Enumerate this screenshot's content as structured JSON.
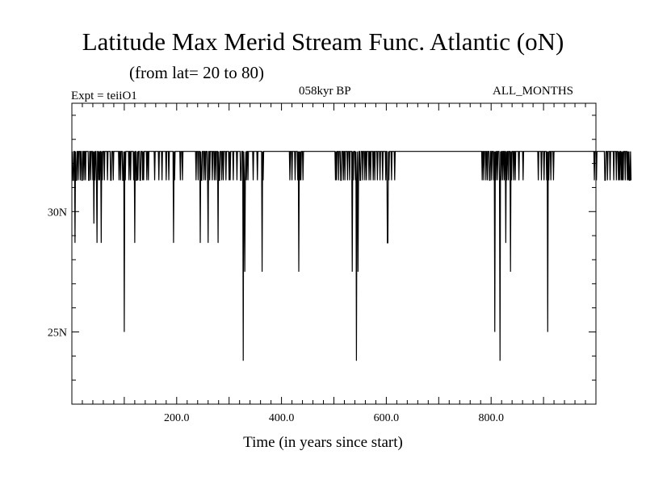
{
  "header": {
    "title": "Latitude Max Merid Stream Func. Atlantic (oN)",
    "subtitle": "(from lat= 20 to 80)",
    "experiment": "Expt = teiiO1",
    "period": "058kyr BP",
    "months": "ALL_MONTHS"
  },
  "chart_data": {
    "type": "line",
    "title": "Latitude Max Merid Stream Func. Atlantic (oN)",
    "subtitle": "(from lat= 20 to 80)",
    "xlabel": "Time (in years since start)",
    "ylabel": "",
    "xlim": [
      0,
      1000
    ],
    "ylim": [
      22,
      34.5
    ],
    "x_ticks": [
      200,
      400,
      600,
      800
    ],
    "x_tick_labels": [
      "200.0",
      "400.0",
      "600.0",
      "800.0"
    ],
    "y_ticks": [
      25,
      30
    ],
    "y_tick_labels": [
      "25N",
      "30N"
    ],
    "grid": false,
    "legend": "none",
    "series": [
      {
        "x_start": 1,
        "x_step": 1,
        "base_level": 32.5,
        "values": [
          32.5,
          31.3,
          31.3,
          32.5,
          32.5,
          28.7,
          32.5,
          31.3,
          31.3,
          32.5,
          32.5,
          31.3,
          32.5,
          32.5,
          32.5,
          31.3,
          32.5,
          32.5,
          31.3,
          31.3,
          32.5,
          32.5,
          31.3,
          32.5,
          32.5,
          31.3,
          32.5,
          32.5,
          32.5,
          32.5,
          32.5,
          31.3,
          31.3,
          32.5,
          32.5,
          31.3,
          32.5,
          32.5,
          32.5,
          31.3,
          32.5,
          29.5,
          32.5,
          31.3,
          32.5,
          32.5,
          31.3,
          28.7,
          32.5,
          32.5,
          31.3,
          32.5,
          31.3,
          32.5,
          32.5,
          28.7,
          32.5,
          31.3,
          32.5,
          32.5,
          32.5,
          31.3,
          32.5,
          32.5,
          32.5,
          32.5,
          32.5,
          31.3,
          32.5,
          32.5,
          32.5,
          32.5,
          32.5,
          31.3,
          31.3,
          32.5,
          32.5,
          32.5,
          31.3,
          32.5,
          32.5,
          32.5,
          32.5,
          32.5,
          32.5,
          32.5,
          32.5,
          32.5,
          32.5,
          31.3,
          32.5,
          32.5,
          31.3,
          32.5,
          32.5,
          32.5,
          31.3,
          31.3,
          32.5,
          25.0,
          32.5,
          31.3,
          32.5,
          32.5,
          32.5,
          32.5,
          32.5,
          32.5,
          31.3,
          32.5,
          32.5,
          31.3,
          32.5,
          32.5,
          32.5,
          32.5,
          32.5,
          31.3,
          32.5,
          28.7,
          32.5,
          32.5,
          31.3,
          31.3,
          32.5,
          31.3,
          32.5,
          32.5,
          32.5,
          31.3,
          31.3,
          32.5,
          32.5,
          32.5,
          31.3,
          32.5,
          31.3,
          32.5,
          32.5,
          32.5,
          32.5,
          32.5,
          31.3,
          32.5,
          32.5,
          31.3,
          32.5,
          32.5,
          32.5,
          32.5,
          32.5,
          32.5,
          32.5,
          32.5,
          32.5,
          32.5,
          32.5,
          31.3,
          32.5,
          32.5,
          32.5,
          32.5,
          32.5,
          32.5,
          32.5,
          31.3,
          32.5,
          32.5,
          32.5,
          32.5,
          32.5,
          31.3,
          32.5,
          32.5,
          32.5,
          32.5,
          32.5,
          32.5,
          32.5,
          31.3,
          32.5,
          32.5,
          32.5,
          32.5,
          31.3,
          32.5,
          32.5,
          32.5,
          32.5,
          32.5,
          32.5,
          32.5,
          32.5,
          28.7,
          32.5,
          31.3,
          32.5,
          32.5,
          32.5,
          32.5,
          32.5,
          32.5,
          32.5,
          32.5,
          32.5,
          32.5,
          31.3,
          32.5,
          32.5,
          32.5,
          31.3,
          32.5,
          32.5,
          32.5,
          32.5,
          32.5,
          32.5,
          32.5,
          32.5,
          32.5,
          32.5,
          32.5,
          32.5,
          32.5,
          32.5,
          32.5,
          32.5,
          32.5,
          32.5,
          32.5,
          32.5,
          32.5,
          32.5,
          32.5,
          32.5,
          32.5,
          31.3,
          32.5,
          32.5,
          32.5,
          31.3,
          32.5,
          32.5,
          32.5,
          28.7,
          32.5,
          31.3,
          31.3,
          32.5,
          32.5,
          32.5,
          31.3,
          32.5,
          32.5,
          31.3,
          32.5,
          32.5,
          32.5,
          31.3,
          28.7,
          32.5,
          32.5,
          31.3,
          32.5,
          32.5,
          32.5,
          32.5,
          31.3,
          32.5,
          32.5,
          32.5,
          31.3,
          32.5,
          32.5,
          31.3,
          32.5,
          32.5,
          32.5,
          28.7,
          32.5,
          31.3,
          31.3,
          32.5,
          32.5,
          32.5,
          31.3,
          32.5,
          32.5,
          31.3,
          32.5,
          32.5,
          32.5,
          32.5,
          31.3,
          32.5,
          32.5,
          32.5,
          32.5,
          32.5,
          31.3,
          32.5,
          31.3,
          32.5,
          32.5,
          32.5,
          32.5,
          32.5,
          31.3,
          32.5,
          32.5,
          32.5,
          32.5,
          32.5,
          32.5,
          31.3,
          32.5,
          32.5,
          32.5,
          32.5,
          32.5,
          32.5,
          31.3,
          31.3,
          32.5,
          32.5,
          32.5,
          23.8,
          32.5,
          31.3,
          27.5,
          31.3,
          32.5,
          31.3,
          32.5,
          32.5,
          31.3,
          32.5,
          32.5,
          32.5,
          32.5,
          32.5,
          32.5,
          32.5,
          32.5,
          32.5,
          31.3,
          32.5,
          32.5,
          32.5,
          32.5,
          32.5,
          32.5,
          32.5,
          31.3,
          32.5,
          32.5,
          32.5,
          32.5,
          32.5,
          32.5,
          32.5,
          32.5,
          27.5,
          32.5,
          31.3,
          32.5,
          32.5,
          32.5,
          32.5,
          32.5,
          32.5,
          32.5,
          32.5,
          32.5,
          32.5,
          32.5,
          32.5,
          32.5,
          32.5,
          32.5,
          32.5,
          32.5,
          32.5,
          32.5,
          32.5,
          32.5,
          32.5,
          32.5,
          32.5,
          32.5,
          32.5,
          32.5,
          32.5,
          32.5,
          32.5,
          32.5,
          32.5,
          32.5,
          32.5,
          32.5,
          32.5,
          32.5,
          32.5,
          32.5,
          32.5,
          32.5,
          32.5,
          32.5,
          32.5,
          32.5,
          32.5,
          32.5,
          32.5,
          32.5,
          32.5,
          31.3,
          32.5,
          32.5,
          32.5,
          31.3,
          32.5,
          32.5,
          32.5,
          32.5,
          32.5,
          31.3,
          32.5,
          32.5,
          32.5,
          32.5,
          31.3,
          32.5,
          27.5,
          32.5,
          31.3,
          32.5,
          31.3,
          32.5,
          32.5,
          32.5,
          31.3,
          32.5,
          32.5,
          32.5,
          32.5,
          32.5,
          32.5,
          32.5,
          32.5,
          32.5,
          32.5,
          32.5,
          32.5,
          32.5,
          32.5,
          32.5,
          32.5,
          32.5,
          32.5,
          32.5,
          32.5,
          32.5,
          32.5,
          32.5,
          32.5,
          32.5,
          32.5,
          32.5,
          32.5,
          32.5,
          32.5,
          32.5,
          32.5,
          32.5,
          32.5,
          32.5,
          32.5,
          32.5,
          32.5,
          32.5,
          32.5,
          32.5,
          32.5,
          32.5,
          32.5,
          32.5,
          32.5,
          32.5,
          32.5,
          32.5,
          32.5,
          32.5,
          32.5,
          32.5,
          32.5,
          32.5,
          32.5,
          32.5,
          32.5,
          32.5,
          32.5,
          32.5,
          31.3,
          32.5,
          31.3,
          32.5,
          32.5,
          32.5,
          31.3,
          32.5,
          32.5,
          32.5,
          31.3,
          31.3,
          32.5,
          32.5,
          32.5,
          31.3,
          32.5,
          32.5,
          31.3,
          32.5,
          32.5,
          32.5,
          32.5,
          31.3,
          32.5,
          32.5,
          32.5,
          31.3,
          32.5,
          32.5,
          32.5,
          32.5,
          27.5,
          32.5,
          31.3,
          32.5,
          32.5,
          32.5,
          31.3,
          32.5,
          23.8,
          31.3,
          32.5,
          27.5,
          31.3,
          32.5,
          32.5,
          31.3,
          31.3,
          32.5,
          32.5,
          32.5,
          31.3,
          32.5,
          32.5,
          32.5,
          31.3,
          32.5,
          32.5,
          31.3,
          32.5,
          32.5,
          32.5,
          32.5,
          31.3,
          32.5,
          32.5,
          31.3,
          32.5,
          32.5,
          32.5,
          32.5,
          31.3,
          32.5,
          32.5,
          31.3,
          32.5,
          32.5,
          32.5,
          32.5,
          31.3,
          32.5,
          32.5,
          32.5,
          32.5,
          31.3,
          32.5,
          32.5,
          32.5,
          32.5,
          31.3,
          32.5,
          32.5,
          32.5,
          32.5,
          32.5,
          31.3,
          32.5,
          32.5,
          28.7,
          28.7,
          32.5,
          31.3,
          32.5,
          32.5,
          32.5,
          32.5,
          31.3,
          32.5,
          32.5,
          32.5,
          32.5,
          32.5,
          31.3,
          32.5,
          32.5,
          32.5,
          32.5,
          32.5,
          32.5,
          32.5,
          32.5,
          32.5,
          32.5,
          32.5,
          32.5,
          32.5,
          32.5,
          32.5,
          32.5,
          32.5,
          32.5,
          32.5,
          32.5,
          32.5,
          32.5,
          32.5,
          32.5,
          32.5,
          32.5,
          32.5,
          32.5,
          32.5,
          32.5,
          32.5,
          32.5,
          32.5,
          32.5,
          32.5,
          32.5,
          32.5,
          32.5,
          32.5,
          32.5,
          32.5,
          32.5,
          32.5,
          32.5,
          32.5,
          32.5,
          32.5,
          32.5,
          32.5,
          32.5,
          32.5,
          32.5,
          32.5,
          32.5,
          32.5,
          32.5,
          32.5,
          32.5,
          32.5,
          32.5,
          32.5,
          32.5,
          32.5,
          32.5,
          32.5,
          32.5,
          32.5,
          32.5,
          32.5,
          32.5,
          32.5,
          32.5,
          32.5,
          32.5,
          32.5,
          32.5,
          32.5,
          32.5,
          32.5,
          32.5,
          32.5,
          32.5,
          32.5,
          32.5,
          32.5,
          32.5,
          32.5,
          32.5,
          32.5,
          32.5,
          32.5,
          32.5,
          32.5,
          32.5,
          32.5,
          32.5,
          32.5,
          32.5,
          32.5,
          32.5,
          32.5,
          32.5,
          32.5,
          32.5,
          32.5,
          32.5,
          32.5,
          32.5,
          32.5,
          32.5,
          32.5,
          32.5,
          32.5,
          32.5,
          32.5,
          32.5,
          32.5,
          32.5,
          32.5,
          32.5,
          32.5,
          32.5,
          32.5,
          32.5,
          32.5,
          32.5,
          32.5,
          32.5,
          32.5,
          32.5,
          32.5,
          32.5,
          32.5,
          32.5,
          32.5,
          32.5,
          32.5,
          32.5,
          32.5,
          32.5,
          32.5,
          32.5,
          32.5,
          32.5,
          32.5,
          32.5,
          32.5,
          32.5,
          32.5,
          32.5,
          32.5,
          32.5,
          32.5,
          32.5,
          32.5,
          32.5,
          32.5,
          32.5,
          32.5,
          32.5,
          32.5,
          32.5,
          32.5,
          32.5,
          32.5,
          32.5,
          31.3,
          32.5,
          32.5,
          31.3,
          32.5,
          32.5,
          32.5,
          31.3,
          32.5,
          32.5,
          31.3,
          32.5,
          32.5,
          32.5,
          31.3,
          31.3,
          32.5,
          32.5,
          31.3,
          32.5,
          32.5,
          32.5,
          31.3,
          32.5,
          25.0,
          32.5,
          31.3,
          32.5,
          32.5,
          31.3,
          32.5,
          32.5,
          32.5,
          31.3,
          23.8,
          32.5,
          31.3,
          32.5,
          32.5,
          31.3,
          32.5,
          32.5,
          31.3,
          32.5,
          32.5,
          28.7,
          32.5,
          31.3,
          32.5,
          32.5,
          31.3,
          32.5,
          32.5,
          32.5,
          27.5,
          32.5,
          31.3,
          32.5,
          32.5,
          32.5,
          31.3,
          32.5,
          32.5,
          31.3,
          32.5,
          32.5,
          32.5,
          32.5,
          32.5,
          32.5,
          31.3,
          32.5,
          32.5,
          32.5,
          32.5,
          32.5,
          32.5,
          32.5,
          31.3,
          32.5,
          32.5,
          32.5,
          32.5,
          32.5,
          32.5,
          32.5,
          32.5,
          32.5,
          32.5,
          32.5,
          32.5,
          32.5,
          32.5,
          32.5,
          32.5,
          32.5,
          32.5,
          32.5,
          32.5,
          32.5,
          32.5,
          32.5,
          32.5,
          32.5,
          32.5,
          32.5,
          32.5,
          31.3,
          32.5,
          32.5,
          32.5,
          32.5,
          32.5,
          31.3,
          32.5,
          32.5,
          32.5,
          32.5,
          31.3,
          32.5,
          32.5,
          32.5,
          32.5,
          31.3,
          32.5,
          25.0,
          32.5,
          31.3,
          32.5,
          32.5,
          32.5,
          31.3,
          32.5,
          32.5,
          32.5,
          32.5,
          31.3,
          32.5,
          32.5,
          32.5,
          32.5,
          32.5,
          32.5,
          32.5,
          32.5,
          32.5,
          32.5,
          32.5,
          32.5,
          32.5,
          32.5,
          32.5,
          32.5,
          32.5,
          32.5,
          32.5,
          32.5,
          32.5,
          32.5,
          32.5,
          32.5,
          32.5,
          32.5,
          32.5,
          32.5,
          32.5,
          32.5,
          32.5,
          32.5,
          32.5,
          32.5,
          32.5,
          32.5,
          32.5,
          32.5,
          32.5,
          32.5,
          32.5,
          32.5,
          32.5,
          32.5,
          32.5,
          32.5,
          32.5,
          32.5,
          32.5,
          32.5,
          32.5,
          32.5,
          32.5,
          32.5,
          32.5,
          32.5,
          32.5,
          32.5,
          32.5,
          32.5,
          32.5,
          32.5,
          32.5,
          32.5,
          32.5,
          32.5,
          32.5,
          32.5,
          32.5,
          32.5,
          32.5,
          32.5,
          32.5,
          32.5,
          32.5,
          32.5,
          32.5,
          31.3,
          32.5,
          32.5,
          32.5,
          31.3,
          32.5,
          32.5,
          32.5,
          32.5,
          32.5,
          32.5,
          32.5,
          32.5,
          32.5,
          32.5,
          32.5,
          32.5,
          32.5,
          32.5,
          32.5,
          31.3,
          31.3,
          32.5,
          32.5,
          32.5,
          31.3,
          32.5,
          32.5,
          32.5,
          32.5,
          31.3,
          32.5,
          32.5,
          32.5,
          32.5,
          32.5,
          32.5,
          31.3,
          32.5,
          32.5,
          32.5,
          32.5,
          31.3,
          32.5,
          32.5,
          32.5,
          31.3,
          32.5,
          31.3,
          32.5,
          32.5,
          31.3,
          32.5,
          31.3,
          32.5,
          31.3,
          32.5,
          32.5,
          32.5,
          31.3,
          32.5,
          32.5,
          32.5,
          31.3,
          32.5,
          31.3,
          32.5,
          31.3,
          31.3,
          32.5,
          31.3
        ]
      }
    ]
  }
}
